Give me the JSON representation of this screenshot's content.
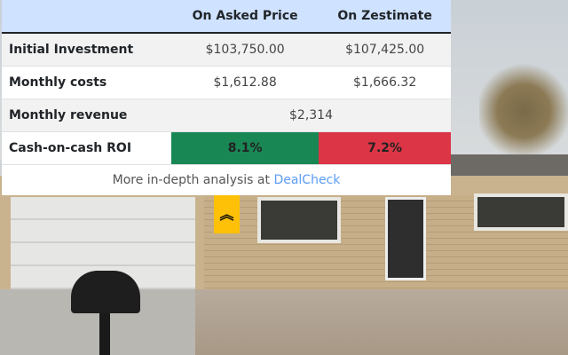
{
  "table": {
    "headers": [
      "",
      "On Asked Price",
      "On Zestimate"
    ],
    "rows": [
      {
        "label": "Initial Investment",
        "asked": "$103,750.00",
        "zestimate": "$107,425.00"
      },
      {
        "label": "Monthly costs",
        "asked": "$1,612.88",
        "zestimate": "$1,666.32"
      },
      {
        "label": "Monthly revenue",
        "value": "$2,314"
      },
      {
        "label": "Cash-on-cash ROI",
        "asked": "8.1%",
        "zestimate": "7.2%"
      }
    ]
  },
  "footer": {
    "text": "More in-depth analysis at ",
    "link": "DealCheck"
  },
  "toggle": {
    "icon": "double-chevron-up-icon",
    "glyph": "︽"
  },
  "colors": {
    "header": "#cfe2ff",
    "good": "#198754",
    "bad": "#dc3545",
    "toggle": "#ffc107",
    "link": "#5b9cf5"
  }
}
